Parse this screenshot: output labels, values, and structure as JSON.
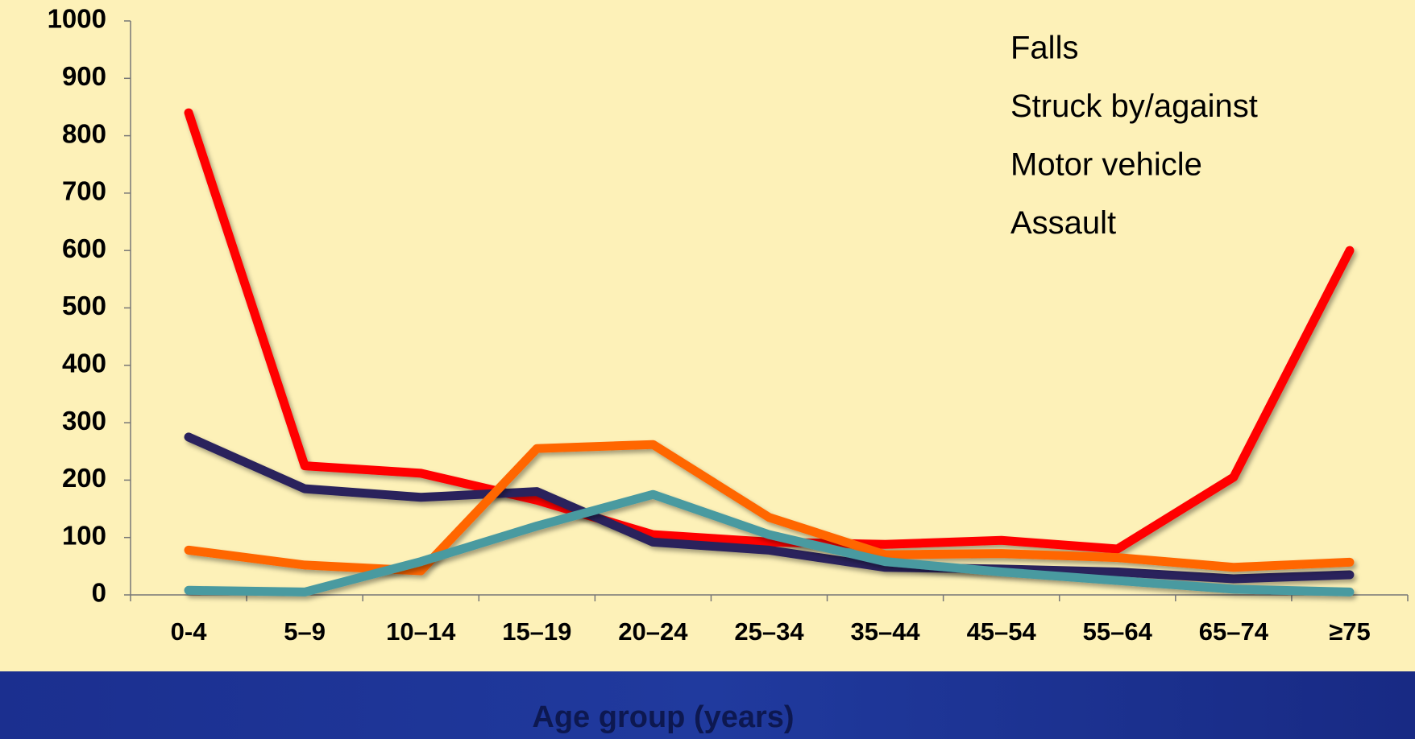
{
  "chart_data": {
    "type": "line",
    "x_label": "Age group (years)",
    "categories": [
      "0-4",
      "5–9",
      "10–14",
      "15–19",
      "20–24",
      "25–34",
      "35–44",
      "45–54",
      "55–64",
      "65–74",
      "≥75"
    ],
    "series": [
      {
        "name": "Falls",
        "color": "#ff0000",
        "values": [
          840,
          225,
          212,
          165,
          105,
          92,
          88,
          95,
          80,
          205,
          600
        ]
      },
      {
        "name": "Struck by/against",
        "color": "#29235c",
        "values": [
          275,
          185,
          170,
          180,
          92,
          78,
          48,
          45,
          40,
          28,
          35
        ]
      },
      {
        "name": "Motor vehicle",
        "color": "#ff6600",
        "values": [
          78,
          52,
          42,
          255,
          262,
          135,
          70,
          72,
          65,
          48,
          57
        ]
      },
      {
        "name": "Assault",
        "color": "#4a9aa0",
        "values": [
          8,
          5,
          58,
          120,
          175,
          105,
          58,
          40,
          25,
          10,
          5
        ]
      }
    ],
    "ylim": [
      0,
      1000
    ],
    "yticks": [
      0,
      100,
      200,
      300,
      400,
      500,
      600,
      700,
      800,
      900,
      1000
    ],
    "legend": "top-right"
  }
}
